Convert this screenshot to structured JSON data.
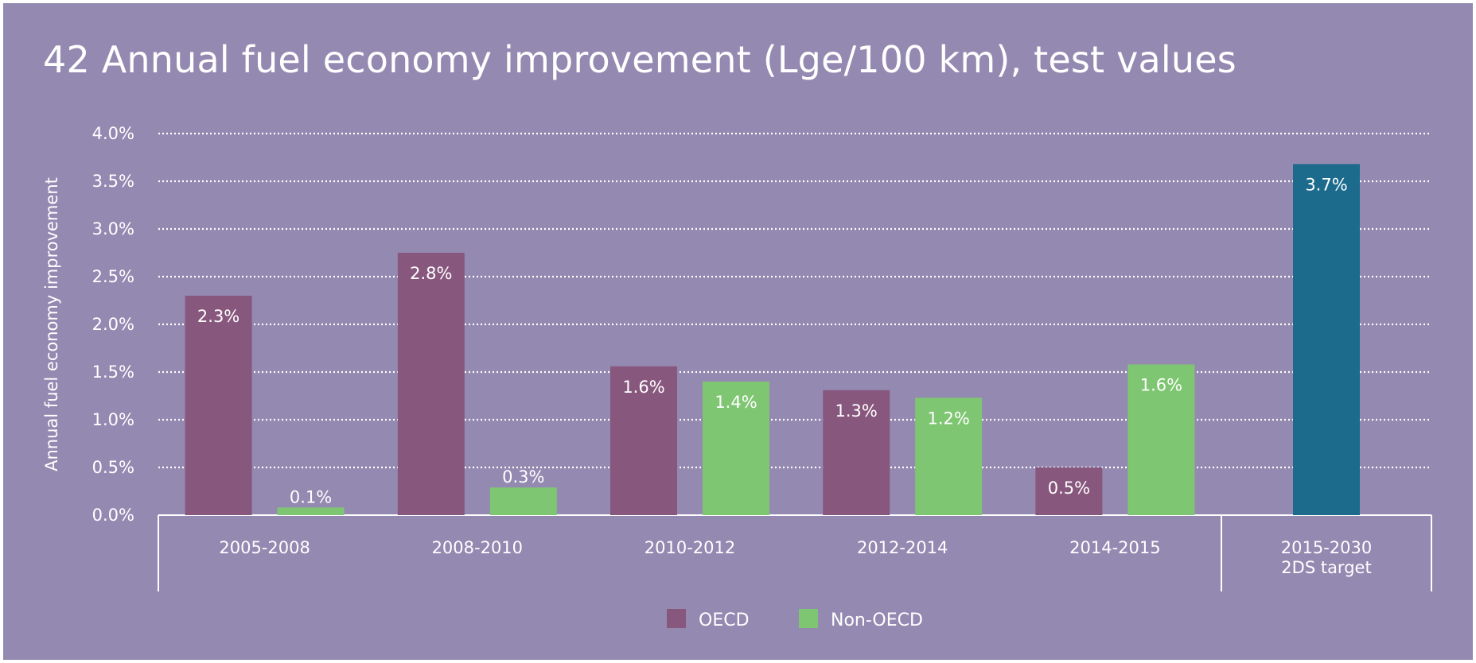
{
  "title": "42 Annual fuel economy improvement (Lge/100 km), test values",
  "chart_data": {
    "type": "bar",
    "title": "42 Annual fuel economy improvement (Lge/100 km), test values",
    "xlabel": "",
    "ylabel": "Annual fuel economy improvement",
    "ylim": [
      0,
      0.04
    ],
    "yticks": [
      "0.0%",
      "0.5%",
      "1.0%",
      "1.5%",
      "2.0%",
      "2.5%",
      "3.0%",
      "3.5%",
      "4.0%"
    ],
    "grid": true,
    "legend_position": "bottom-center",
    "categories": [
      {
        "label": "2005-2008",
        "label2": ""
      },
      {
        "label": "2008-2010",
        "label2": ""
      },
      {
        "label": "2010-2012",
        "label2": ""
      },
      {
        "label": "2012-2014",
        "label2": ""
      },
      {
        "label": "2014-2015",
        "label2": ""
      },
      {
        "label": "2015-2030",
        "label2": "2DS target"
      }
    ],
    "series": [
      {
        "name": "OECD",
        "color": "#88577e",
        "values": [
          0.023,
          0.0275,
          0.0156,
          0.0131,
          0.005,
          null
        ],
        "labels": [
          "2.3%",
          "2.8%",
          "1.6%",
          "1.3%",
          "0.5%",
          ""
        ]
      },
      {
        "name": "Non-OECD",
        "color": "#7fc672",
        "values": [
          0.0008,
          0.0029,
          0.014,
          0.0123,
          0.0158,
          null
        ],
        "labels": [
          "0.1%",
          "0.3%",
          "1.4%",
          "1.2%",
          "1.6%",
          ""
        ]
      },
      {
        "name": "",
        "color": "#1c6b8c",
        "values": [
          null,
          null,
          null,
          null,
          null,
          0.0368
        ],
        "labels": [
          "",
          "",
          "",
          "",
          "",
          "3.7%"
        ]
      }
    ],
    "legend": [
      {
        "name": "OECD",
        "color": "#88577e"
      },
      {
        "name": "Non-OECD",
        "color": "#7fc672"
      }
    ]
  }
}
